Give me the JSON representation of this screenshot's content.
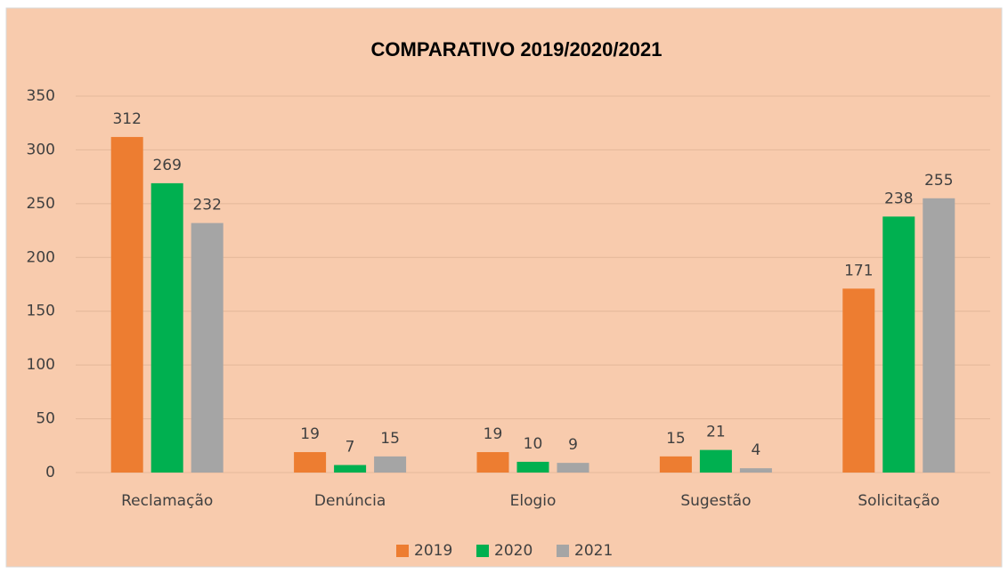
{
  "chart_data": {
    "type": "bar",
    "title": "COMPARATIVO 2019/2020/2021",
    "categories": [
      "Reclamação",
      "Denúncia",
      "Elogio",
      "Sugestão",
      "Solicitação"
    ],
    "series": [
      {
        "name": "2019",
        "color": "#ed7d31",
        "values": [
          312,
          19,
          19,
          15,
          171
        ]
      },
      {
        "name": "2020",
        "color": "#00b050",
        "values": [
          269,
          7,
          10,
          21,
          238
        ]
      },
      {
        "name": "2021",
        "color": "#a5a5a5",
        "values": [
          232,
          15,
          9,
          4,
          255
        ]
      }
    ],
    "ylim": [
      0,
      350
    ],
    "yticks": [
      0,
      50,
      100,
      150,
      200,
      250,
      300,
      350
    ],
    "grid": true,
    "legend": "bottom"
  }
}
